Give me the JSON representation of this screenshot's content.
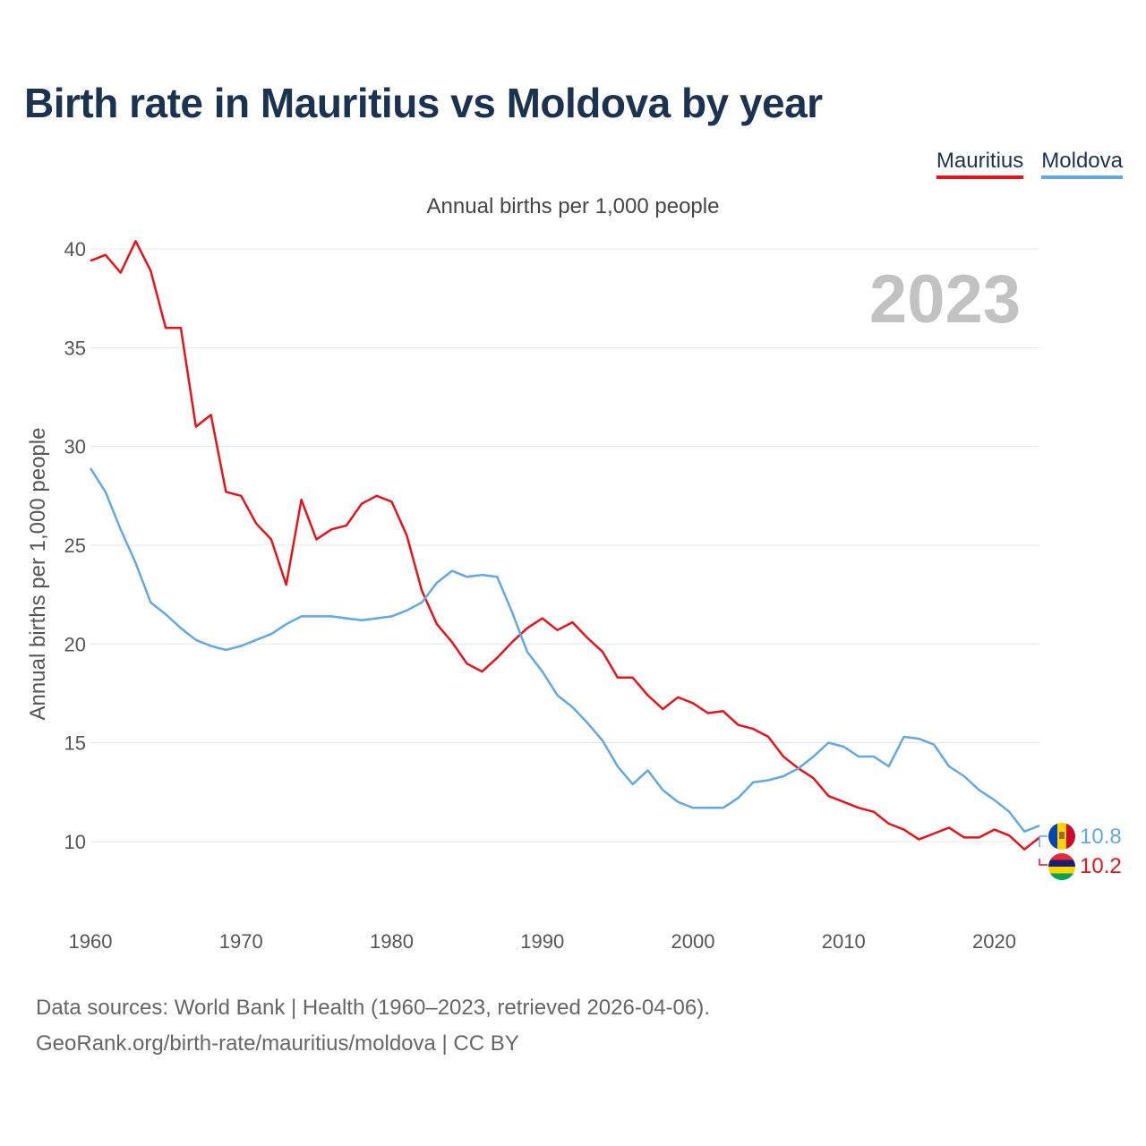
{
  "title": "Birth rate in Mauritius vs Moldova by year",
  "subtitle": "Annual births per 1,000 people",
  "year_watermark": "2023",
  "legend": [
    {
      "name": "Mauritius",
      "color": "#e8131a"
    },
    {
      "name": "Moldova",
      "color": "#62a8e5"
    }
  ],
  "end_labels": {
    "moldova": "10.8",
    "mauritius": "10.2"
  },
  "flags": {
    "moldova": "moldova-flag-icon",
    "mauritius": "mauritius-flag-icon"
  },
  "footer": {
    "line1": "Data sources: World Bank | Health (1960–2023, retrieved 2026-04-06).",
    "line2": "GeoRank.org/birth-rate/mauritius/moldova | CC BY"
  },
  "chart_data": {
    "type": "line",
    "title": "Birth rate in Mauritius vs Moldova by year",
    "ylabel": "Annual births per 1,000 people",
    "xlabel": "",
    "xlim": [
      1960,
      2023
    ],
    "ylim": [
      7,
      42
    ],
    "x_ticks": [
      1960,
      1970,
      1980,
      1990,
      2000,
      2010,
      2020
    ],
    "y_ticks": [
      10,
      15,
      20,
      25,
      30,
      35,
      40
    ],
    "grid": true,
    "x": [
      1960,
      1961,
      1962,
      1963,
      1964,
      1965,
      1966,
      1967,
      1968,
      1969,
      1970,
      1971,
      1972,
      1973,
      1974,
      1975,
      1976,
      1977,
      1978,
      1979,
      1980,
      1981,
      1982,
      1983,
      1984,
      1985,
      1986,
      1987,
      1988,
      1989,
      1990,
      1991,
      1992,
      1993,
      1994,
      1995,
      1996,
      1997,
      1998,
      1999,
      2000,
      2001,
      2002,
      2003,
      2004,
      2005,
      2006,
      2007,
      2008,
      2009,
      2010,
      2011,
      2012,
      2013,
      2014,
      2015,
      2016,
      2017,
      2018,
      2019,
      2020,
      2021,
      2022,
      2023
    ],
    "series": [
      {
        "name": "Mauritius",
        "color": "#e8131a",
        "values": [
          39.4,
          39.7,
          38.8,
          40.4,
          38.9,
          36.0,
          36.0,
          31.0,
          31.6,
          27.7,
          27.5,
          26.1,
          25.3,
          23.0,
          27.3,
          25.3,
          25.8,
          26.0,
          27.1,
          27.5,
          27.2,
          25.5,
          22.7,
          21.0,
          20.1,
          19.0,
          18.6,
          19.3,
          20.1,
          20.8,
          21.3,
          20.7,
          21.1,
          20.3,
          19.6,
          18.3,
          18.3,
          17.4,
          16.7,
          17.3,
          17.0,
          16.5,
          16.6,
          15.9,
          15.7,
          15.3,
          14.3,
          13.7,
          13.2,
          12.3,
          12.0,
          11.7,
          11.5,
          10.9,
          10.6,
          10.1,
          10.4,
          10.7,
          10.2,
          10.2,
          10.6,
          10.3,
          9.6,
          10.2
        ]
      },
      {
        "name": "Moldova",
        "color": "#62a8e5",
        "values": [
          28.9,
          27.7,
          25.8,
          24.1,
          22.1,
          21.5,
          20.8,
          20.2,
          19.9,
          19.7,
          19.9,
          20.2,
          20.5,
          21.0,
          21.4,
          21.4,
          21.4,
          21.3,
          21.2,
          21.3,
          21.4,
          21.7,
          22.1,
          23.1,
          23.7,
          23.4,
          23.5,
          23.4,
          21.6,
          19.6,
          18.6,
          17.4,
          16.8,
          16.0,
          15.1,
          13.8,
          12.9,
          13.6,
          12.6,
          12.0,
          11.7,
          11.7,
          11.7,
          12.2,
          13.0,
          13.1,
          13.3,
          13.7,
          14.3,
          15.0,
          14.8,
          14.3,
          14.3,
          13.8,
          15.3,
          15.2,
          14.9,
          13.8,
          13.3,
          12.6,
          12.1,
          11.5,
          10.5,
          10.8
        ]
      }
    ]
  }
}
